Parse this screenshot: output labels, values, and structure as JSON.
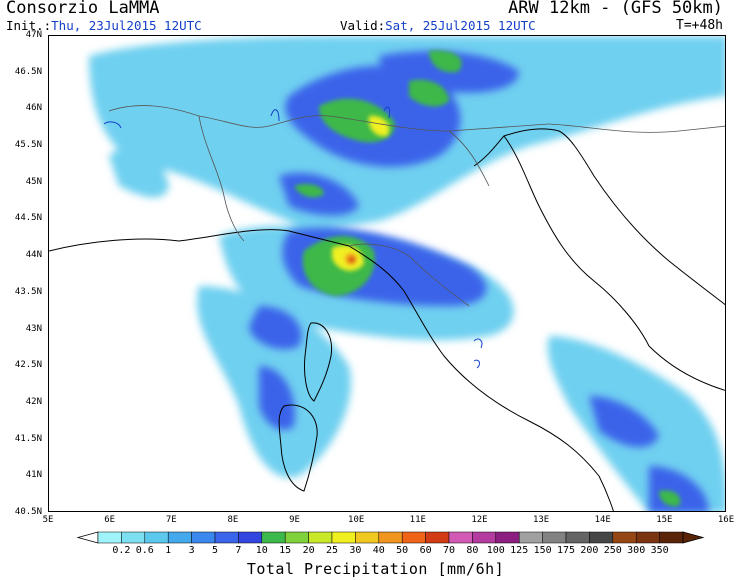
{
  "header": {
    "title_left": "Consorzio LaMMA",
    "title_right": "ARW 12km - (GFS 50km)",
    "init_label": "Init.:",
    "init_value": "Thu, 23Jul2015 12UTC",
    "valid_label": "Valid:",
    "valid_value": "Sat, 25Jul2015 12UTC",
    "lead": "T=+48h"
  },
  "axes": {
    "lat_ticks": [
      "47N",
      "46.5N",
      "46N",
      "45.5N",
      "45N",
      "44.5N",
      "44N",
      "43.5N",
      "43N",
      "42.5N",
      "42N",
      "41.5N",
      "41N",
      "40.5N"
    ],
    "lon_ticks": [
      "5E",
      "6E",
      "7E",
      "8E",
      "9E",
      "10E",
      "11E",
      "12E",
      "13E",
      "14E",
      "15E",
      "16E"
    ]
  },
  "colorbar": {
    "title": "Total Precipitation [mm/6h]",
    "labels": [
      "0.2",
      "0.6",
      "1",
      "3",
      "5",
      "7",
      "10",
      "15",
      "20",
      "25",
      "30",
      "40",
      "50",
      "60",
      "70",
      "80",
      "100",
      "125",
      "150",
      "175",
      "200",
      "250",
      "300",
      "350"
    ],
    "colors": [
      "#9ef4fa",
      "#7de0f0",
      "#5cc8ee",
      "#43a8ec",
      "#3a88ee",
      "#3a64ea",
      "#3446e0",
      "#3db84a",
      "#7fd23c",
      "#c8e828",
      "#f0f020",
      "#f0c820",
      "#f0961e",
      "#f06418",
      "#d23c14",
      "#d25ab4",
      "#b43ca0",
      "#8c1e82",
      "#a0a0a0",
      "#828282",
      "#646464",
      "#464646",
      "#964614",
      "#7a3410",
      "#5a2408"
    ]
  }
}
